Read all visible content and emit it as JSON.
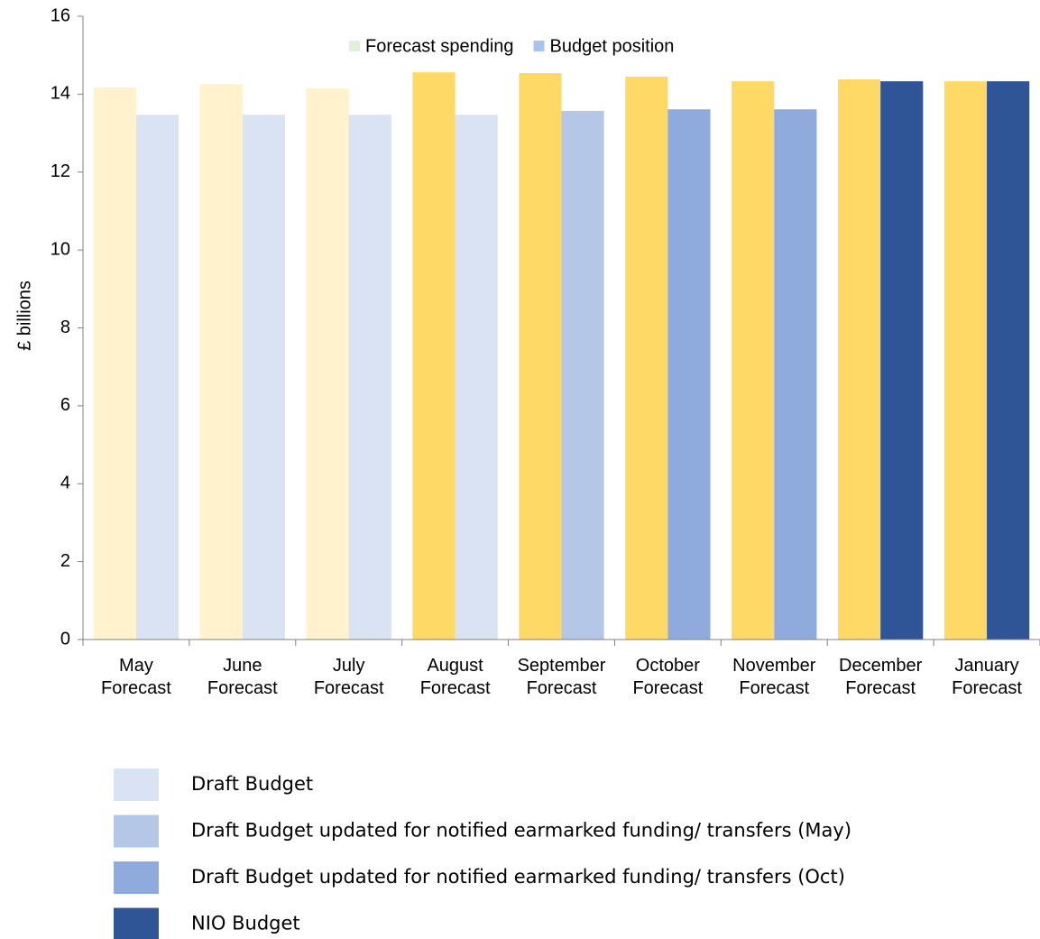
{
  "chart_data": {
    "type": "bar",
    "y_label": "£ billions",
    "categories": [
      "May Forecast",
      "June Forecast",
      "July Forecast",
      "August Forecast",
      "September Forecast",
      "October Forecast",
      "November Forecast",
      "December Forecast",
      "January Forecast"
    ],
    "series": [
      {
        "name": "Forecast spending",
        "color": "#e2f0d9",
        "values": [
          14.17,
          14.26,
          14.15,
          14.56,
          14.54,
          14.45,
          14.33,
          14.38,
          14.33
        ],
        "colors": [
          "#fff2cc",
          "#fff2cc",
          "#fff2cc",
          "#ffd966",
          "#ffd966",
          "#ffd966",
          "#ffd966",
          "#ffd966",
          "#ffd966"
        ]
      },
      {
        "name": "Budget position",
        "color": "#a9c4eb",
        "values": [
          13.47,
          13.47,
          13.47,
          13.47,
          13.57,
          13.61,
          13.61,
          14.33,
          14.33
        ],
        "colors": [
          "#dae3f3",
          "#dae3f3",
          "#dae3f3",
          "#dae3f3",
          "#b4c7e7",
          "#8faadc",
          "#8faadc",
          "#2f5597",
          "#2f5597"
        ]
      }
    ],
    "ylim": [
      0,
      16
    ],
    "yticks": [
      0,
      2,
      4,
      6,
      8,
      10,
      12,
      14,
      16
    ],
    "grid": false,
    "legend": "top",
    "color_legend": [
      {
        "label": "Draft Budget",
        "color": "#dae3f3"
      },
      {
        "label": "Draft Budget updated for notified earmarked funding/ transfers (May)",
        "color": "#b4c7e7"
      },
      {
        "label": "Draft Budget updated for notified earmarked funding/ transfers (Oct)",
        "color": "#8faadc"
      },
      {
        "label": "NIO Budget",
        "color": "#2f5597"
      }
    ]
  }
}
